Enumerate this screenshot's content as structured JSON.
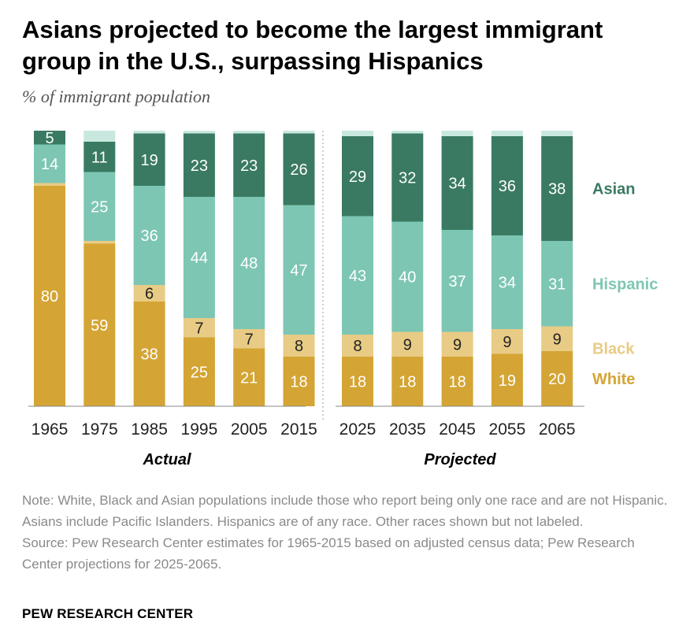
{
  "title": "Asians projected to become the largest immigrant group in the U.S., surpassing Hispanics",
  "subtitle": "% of immigrant population",
  "note": "Note: White, Black and Asian populations include those who report being only one race and are not Hispanic. Asians include Pacific Islanders. Hispanics are of any race. Other races shown but not labeled.",
  "source": "Source: Pew Research Center estimates for 1965-2015 based on adjusted census data; Pew Research Center projections for 2025-2065.",
  "footer": "PEW RESEARCH CENTER",
  "colors": {
    "White": "#d4a534",
    "Black": "#e8cb85",
    "Hispanic": "#7dc6b4",
    "Asian": "#3a7a62",
    "Other": "#c8e8df",
    "label_light": "#ffffff",
    "label_dark": "#222222"
  },
  "chart_data": {
    "type": "bar",
    "stacked": true,
    "ylim": [
      0,
      100
    ],
    "groups": [
      {
        "label": "Actual",
        "categories": [
          "1965",
          "1975",
          "1985",
          "1995",
          "2005",
          "2015"
        ]
      },
      {
        "label": "Projected",
        "categories": [
          "2025",
          "2035",
          "2045",
          "2055",
          "2065"
        ]
      }
    ],
    "categories": [
      "1965",
      "1975",
      "1985",
      "1995",
      "2005",
      "2015",
      "2025",
      "2035",
      "2045",
      "2055",
      "2065"
    ],
    "series": [
      {
        "name": "White",
        "values": [
          80,
          59,
          38,
          25,
          21,
          18,
          18,
          18,
          18,
          19,
          20
        ]
      },
      {
        "name": "Black",
        "values": [
          null,
          null,
          6,
          7,
          7,
          8,
          8,
          9,
          9,
          9,
          9
        ]
      },
      {
        "name": "Hispanic",
        "values": [
          14,
          25,
          36,
          44,
          48,
          47,
          43,
          40,
          37,
          34,
          31
        ]
      },
      {
        "name": "Asian",
        "values": [
          5,
          11,
          19,
          23,
          23,
          26,
          29,
          32,
          34,
          36,
          38
        ]
      }
    ],
    "legend_placement": "right",
    "grid": false
  }
}
